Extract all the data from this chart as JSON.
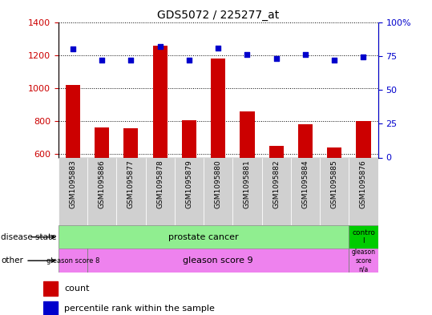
{
  "title": "GDS5072 / 225277_at",
  "samples": [
    "GSM1095883",
    "GSM1095886",
    "GSM1095877",
    "GSM1095878",
    "GSM1095879",
    "GSM1095880",
    "GSM1095881",
    "GSM1095882",
    "GSM1095884",
    "GSM1095885",
    "GSM1095876"
  ],
  "counts": [
    1020,
    760,
    755,
    1255,
    805,
    1180,
    860,
    648,
    780,
    642,
    800
  ],
  "percentiles": [
    80,
    72,
    72,
    82,
    72,
    81,
    76,
    73,
    76,
    72,
    74
  ],
  "ylim_left": [
    580,
    1400
  ],
  "ylim_right": [
    0,
    100
  ],
  "yticks_left": [
    600,
    800,
    1000,
    1200,
    1400
  ],
  "yticks_right": [
    0,
    25,
    50,
    75,
    100
  ],
  "bar_color": "#cc0000",
  "dot_color": "#0000cc",
  "background_color": "#ffffff",
  "bar_width": 0.5,
  "ylabel_left_color": "#cc0000",
  "ylabel_right_color": "#0000cc",
  "prostate_color": "#90ee90",
  "control_color": "#00cc00",
  "gleason_color": "#ee82ee",
  "tick_bg_color": "#d0d0d0"
}
